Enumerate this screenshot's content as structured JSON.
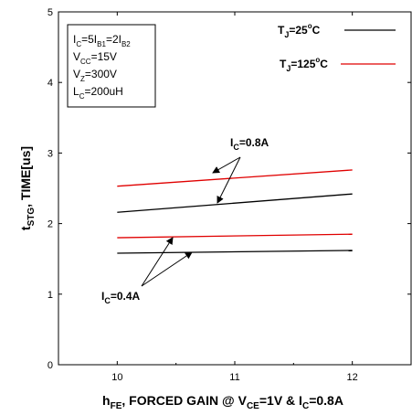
{
  "chart_data": {
    "type": "line",
    "xlabel": {
      "main": "h",
      "sub1": "FE",
      "mid": ", FORCED GAIN @ V",
      "sub2": "CE",
      "mid2": "=1V & I",
      "sub3": "C",
      "end": "=0.8A"
    },
    "ylabel": {
      "main": "t",
      "sub": "STG",
      "end": ", TIME[us]"
    },
    "xlim": [
      9.5,
      12.5
    ],
    "ylim": [
      0,
      5
    ],
    "x_ticks": [
      10,
      11,
      12
    ],
    "y_ticks": [
      0,
      1,
      2,
      3,
      4,
      5
    ],
    "grid": false,
    "legend_position": "top-right",
    "legend": [
      {
        "text": "T",
        "sub": "J",
        "rest": "=25",
        "sup": "o",
        "tail": "C",
        "color": "#000000"
      },
      {
        "text": "T",
        "sub": "J",
        "rest": "=125",
        "sup": "o",
        "tail": "C",
        "color": "#e00000"
      }
    ],
    "series": [
      {
        "temp": "125C",
        "ic": "0.8A",
        "color": "#e00000",
        "x": [
          10,
          12
        ],
        "y": [
          2.53,
          2.76
        ]
      },
      {
        "temp": "25C",
        "ic": "0.8A",
        "color": "#000000",
        "x": [
          10,
          12
        ],
        "y": [
          2.16,
          2.42
        ]
      },
      {
        "temp": "125C",
        "ic": "0.4A",
        "color": "#e00000",
        "x": [
          10,
          12
        ],
        "y": [
          1.8,
          1.85
        ]
      },
      {
        "temp": "25C",
        "ic": "0.4A",
        "color": "#000000",
        "x": [
          10,
          12
        ],
        "y": [
          1.58,
          1.62
        ]
      }
    ],
    "annotations": [
      {
        "main": "I",
        "sub": "C",
        "rest": "=0.8A"
      },
      {
        "main": "I",
        "sub": "C",
        "rest": "=0.4A"
      }
    ],
    "conditions": [
      {
        "parts": [
          [
            "I",
            ""
          ],
          [
            "C",
            "sub"
          ],
          [
            "=5I",
            ""
          ],
          [
            "B1",
            "sub"
          ],
          [
            "=2I",
            ""
          ],
          [
            "B2",
            "sub"
          ]
        ]
      },
      {
        "parts": [
          [
            "V",
            ""
          ],
          [
            "CC",
            "sub"
          ],
          [
            "=15V",
            ""
          ]
        ]
      },
      {
        "parts": [
          [
            "V",
            ""
          ],
          [
            "Z",
            "sub"
          ],
          [
            "=300V",
            ""
          ]
        ]
      },
      {
        "parts": [
          [
            "L",
            ""
          ],
          [
            "C",
            "sub"
          ],
          [
            "=200uH",
            ""
          ]
        ]
      }
    ]
  }
}
